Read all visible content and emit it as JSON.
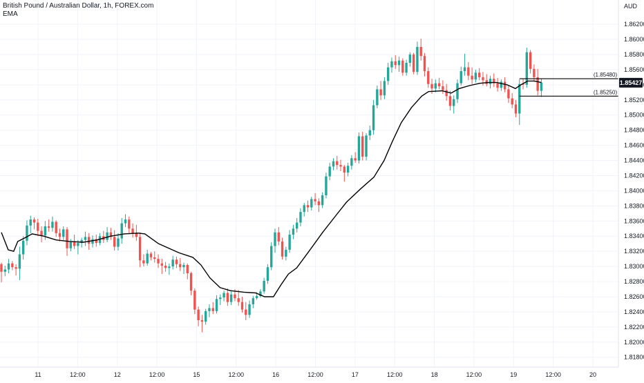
{
  "header": {
    "symbol_title": "British Pound / Australian Dollar, 1h, FOREX.com",
    "indicator": "EMA",
    "currency": "AUD"
  },
  "colors": {
    "up": "#26a69a",
    "down": "#ef5350",
    "ema": "#000000",
    "grid": "#f0f3fa",
    "axis_text": "#131722",
    "last_price_bg": "#131722"
  },
  "chart_data": {
    "type": "candlestick",
    "title": "British Pound / Australian Dollar, 1h, FOREX.com",
    "indicator": "EMA",
    "y_unit": "AUD",
    "ylim": [
      1.8167,
      1.8652
    ],
    "y_ticks": [
      "1.86200",
      "1.86000",
      "1.85800",
      "1.85600",
      "1.85400",
      "1.85200",
      "1.85000",
      "1.84800",
      "1.84600",
      "1.84400",
      "1.84200",
      "1.84000",
      "1.83800",
      "1.83600",
      "1.83400",
      "1.83200",
      "1.83000",
      "1.82800",
      "1.82600",
      "1.82400",
      "1.82200",
      "1.82000",
      "1.81800"
    ],
    "x_ticks": [
      "11",
      "12:00",
      "12",
      "12:00",
      "15",
      "12:00",
      "16",
      "12:00",
      "17",
      "12:00",
      "18",
      "12:00",
      "19",
      "12:00",
      "20"
    ],
    "last_price": "1.85427",
    "levels": [
      {
        "label": "(1.85480)",
        "value": 1.8548
      },
      {
        "label": "(1.85250)",
        "value": 1.8525
      }
    ],
    "grid": true,
    "ema_anchors": [
      [
        0,
        1.8345
      ],
      [
        10,
        1.8322
      ],
      [
        18,
        1.832
      ],
      [
        24,
        1.8333
      ],
      [
        35,
        1.8338
      ],
      [
        45,
        1.8343
      ],
      [
        62,
        1.834
      ],
      [
        80,
        1.8335
      ],
      [
        100,
        1.8333
      ],
      [
        120,
        1.8332
      ],
      [
        140,
        1.8335
      ],
      [
        160,
        1.834
      ],
      [
        180,
        1.8343
      ],
      [
        200,
        1.8344
      ],
      [
        210,
        1.8343
      ],
      [
        230,
        1.833
      ],
      [
        260,
        1.8318
      ],
      [
        280,
        1.8312
      ],
      [
        292,
        1.8302
      ],
      [
        305,
        1.8285
      ],
      [
        320,
        1.8272
      ],
      [
        335,
        1.8268
      ],
      [
        355,
        1.8266
      ],
      [
        372,
        1.8265
      ],
      [
        385,
        1.826
      ],
      [
        398,
        1.826
      ],
      [
        410,
        1.8277
      ],
      [
        420,
        1.829
      ],
      [
        432,
        1.8298
      ],
      [
        450,
        1.832
      ],
      [
        470,
        1.8345
      ],
      [
        490,
        1.8368
      ],
      [
        505,
        1.8385
      ],
      [
        525,
        1.8402
      ],
      [
        545,
        1.8418
      ],
      [
        560,
        1.844
      ],
      [
        572,
        1.8465
      ],
      [
        585,
        1.849
      ],
      [
        600,
        1.851
      ],
      [
        615,
        1.8525
      ],
      [
        625,
        1.8531
      ],
      [
        645,
        1.8532
      ],
      [
        658,
        1.8529
      ],
      [
        670,
        1.8535
      ],
      [
        685,
        1.8539
      ],
      [
        700,
        1.8542
      ],
      [
        712,
        1.8543
      ],
      [
        725,
        1.8543
      ],
      [
        740,
        1.854
      ],
      [
        752,
        1.8535
      ],
      [
        760,
        1.854
      ],
      [
        770,
        1.8545
      ],
      [
        780,
        1.8545
      ],
      [
        790,
        1.8543
      ]
    ],
    "candles": [
      [
        1.8303,
        1.8305,
        1.8279,
        1.8293
      ],
      [
        1.8293,
        1.8301,
        1.8287,
        1.8296
      ],
      [
        1.8296,
        1.831,
        1.8291,
        1.8304
      ],
      [
        1.8304,
        1.8307,
        1.8295,
        1.8299
      ],
      [
        1.8299,
        1.8303,
        1.8288,
        1.8297
      ],
      [
        1.8297,
        1.8326,
        1.8282,
        1.8316
      ],
      [
        1.8316,
        1.834,
        1.8309,
        1.8334
      ],
      [
        1.8334,
        1.8361,
        1.8328,
        1.8354
      ],
      [
        1.8354,
        1.8367,
        1.8344,
        1.8362
      ],
      [
        1.8362,
        1.8365,
        1.8349,
        1.8358
      ],
      [
        1.8358,
        1.8363,
        1.834,
        1.8347
      ],
      [
        1.8347,
        1.8353,
        1.8332,
        1.8341
      ],
      [
        1.8341,
        1.836,
        1.8335,
        1.8353
      ],
      [
        1.8353,
        1.8362,
        1.8346,
        1.8351
      ],
      [
        1.8351,
        1.8366,
        1.8346,
        1.8359
      ],
      [
        1.8359,
        1.8361,
        1.8339,
        1.8344
      ],
      [
        1.8344,
        1.835,
        1.8333,
        1.8339
      ],
      [
        1.8339,
        1.8353,
        1.8335,
        1.8349
      ],
      [
        1.8349,
        1.8352,
        1.8314,
        1.8324
      ],
      [
        1.8324,
        1.8336,
        1.832,
        1.8332
      ],
      [
        1.8332,
        1.8342,
        1.8323,
        1.8327
      ],
      [
        1.8327,
        1.8335,
        1.8316,
        1.8331
      ],
      [
        1.8331,
        1.8338,
        1.8325,
        1.8335
      ],
      [
        1.8335,
        1.8346,
        1.8327,
        1.8339
      ],
      [
        1.8339,
        1.8344,
        1.8322,
        1.833
      ],
      [
        1.833,
        1.8341,
        1.8325,
        1.8336
      ],
      [
        1.8336,
        1.8342,
        1.8326,
        1.8331
      ],
      [
        1.8331,
        1.8344,
        1.8328,
        1.834
      ],
      [
        1.834,
        1.8347,
        1.8331,
        1.8335
      ],
      [
        1.8335,
        1.8352,
        1.8332,
        1.8345
      ],
      [
        1.8345,
        1.8351,
        1.8335,
        1.8339
      ],
      [
        1.8339,
        1.8348,
        1.8321,
        1.8326
      ],
      [
        1.8326,
        1.8344,
        1.8321,
        1.8337
      ],
      [
        1.8337,
        1.8364,
        1.833,
        1.8357
      ],
      [
        1.8357,
        1.8369,
        1.8352,
        1.8362
      ],
      [
        1.8362,
        1.8366,
        1.8344,
        1.835
      ],
      [
        1.835,
        1.8357,
        1.8338,
        1.8344
      ],
      [
        1.8344,
        1.8355,
        1.8334,
        1.8339
      ],
      [
        1.8339,
        1.8345,
        1.8299,
        1.8308
      ],
      [
        1.8308,
        1.8316,
        1.83,
        1.8304
      ],
      [
        1.8304,
        1.8322,
        1.8301,
        1.8317
      ],
      [
        1.8317,
        1.8319,
        1.8308,
        1.8312
      ],
      [
        1.8312,
        1.832,
        1.8305,
        1.831
      ],
      [
        1.831,
        1.8316,
        1.8298,
        1.8304
      ],
      [
        1.8304,
        1.831,
        1.829,
        1.8301
      ],
      [
        1.8301,
        1.8306,
        1.8293,
        1.8298
      ],
      [
        1.8298,
        1.8304,
        1.8289,
        1.83
      ],
      [
        1.83,
        1.8314,
        1.8296,
        1.8309
      ],
      [
        1.8309,
        1.8313,
        1.8298,
        1.8303
      ],
      [
        1.8303,
        1.8311,
        1.8294,
        1.8299
      ],
      [
        1.8299,
        1.8305,
        1.829,
        1.8302
      ],
      [
        1.8302,
        1.8304,
        1.8283,
        1.8291
      ],
      [
        1.8291,
        1.8293,
        1.8262,
        1.8268
      ],
      [
        1.8268,
        1.8271,
        1.8237,
        1.8243
      ],
      [
        1.8243,
        1.8247,
        1.8221,
        1.8229
      ],
      [
        1.8229,
        1.8236,
        1.8213,
        1.8227
      ],
      [
        1.8227,
        1.8244,
        1.8223,
        1.8241
      ],
      [
        1.8241,
        1.825,
        1.8233,
        1.8245
      ],
      [
        1.8245,
        1.8253,
        1.8237,
        1.8241
      ],
      [
        1.8241,
        1.8262,
        1.8238,
        1.8257
      ],
      [
        1.8257,
        1.8263,
        1.8249,
        1.8259
      ],
      [
        1.8259,
        1.8268,
        1.8254,
        1.8265
      ],
      [
        1.8265,
        1.8271,
        1.8248,
        1.8253
      ],
      [
        1.8253,
        1.8267,
        1.8249,
        1.8263
      ],
      [
        1.8263,
        1.827,
        1.8254,
        1.8258
      ],
      [
        1.8258,
        1.8269,
        1.8248,
        1.8253
      ],
      [
        1.8253,
        1.826,
        1.8239,
        1.8243
      ],
      [
        1.8243,
        1.8253,
        1.8229,
        1.8236
      ],
      [
        1.8236,
        1.8255,
        1.8232,
        1.825
      ],
      [
        1.825,
        1.8261,
        1.8245,
        1.8258
      ],
      [
        1.8258,
        1.8266,
        1.8256,
        1.8261
      ],
      [
        1.8261,
        1.827,
        1.8259,
        1.8267
      ],
      [
        1.8267,
        1.8285,
        1.8264,
        1.8281
      ],
      [
        1.8281,
        1.8303,
        1.8277,
        1.8299
      ],
      [
        1.8299,
        1.8332,
        1.8295,
        1.8327
      ],
      [
        1.8327,
        1.835,
        1.8318,
        1.8345
      ],
      [
        1.8345,
        1.8352,
        1.8328,
        1.8333
      ],
      [
        1.8333,
        1.8338,
        1.8309,
        1.8313
      ],
      [
        1.8313,
        1.8326,
        1.8308,
        1.8322
      ],
      [
        1.8322,
        1.8348,
        1.8318,
        1.8342
      ],
      [
        1.8342,
        1.8355,
        1.8336,
        1.835
      ],
      [
        1.835,
        1.8364,
        1.8345,
        1.8358
      ],
      [
        1.8358,
        1.8377,
        1.8353,
        1.8372
      ],
      [
        1.8372,
        1.8384,
        1.8366,
        1.8381
      ],
      [
        1.8381,
        1.8387,
        1.8372,
        1.8378
      ],
      [
        1.8378,
        1.8392,
        1.8374,
        1.8389
      ],
      [
        1.8389,
        1.8397,
        1.8381,
        1.8386
      ],
      [
        1.8386,
        1.839,
        1.8372,
        1.8381
      ],
      [
        1.8381,
        1.8398,
        1.8377,
        1.8394
      ],
      [
        1.8394,
        1.8424,
        1.839,
        1.8419
      ],
      [
        1.8419,
        1.8437,
        1.8414,
        1.8432
      ],
      [
        1.8432,
        1.8443,
        1.8427,
        1.8439
      ],
      [
        1.8439,
        1.8446,
        1.8428,
        1.8434
      ],
      [
        1.8434,
        1.8441,
        1.8426,
        1.8432
      ],
      [
        1.8432,
        1.8434,
        1.8412,
        1.8424
      ],
      [
        1.8424,
        1.8437,
        1.8419,
        1.8433
      ],
      [
        1.8433,
        1.8447,
        1.8428,
        1.8443
      ],
      [
        1.8443,
        1.8451,
        1.8437,
        1.844
      ],
      [
        1.844,
        1.8477,
        1.8436,
        1.8472
      ],
      [
        1.8472,
        1.8478,
        1.844,
        1.8445
      ],
      [
        1.8445,
        1.8476,
        1.844,
        1.8473
      ],
      [
        1.8473,
        1.8486,
        1.8467,
        1.848
      ],
      [
        1.848,
        1.852,
        1.8474,
        1.8513
      ],
      [
        1.8513,
        1.8539,
        1.8509,
        1.8534
      ],
      [
        1.8534,
        1.8545,
        1.852,
        1.8526
      ],
      [
        1.8526,
        1.855,
        1.8521,
        1.8545
      ],
      [
        1.8545,
        1.8569,
        1.854,
        1.8563
      ],
      [
        1.8563,
        1.8576,
        1.8556,
        1.8571
      ],
      [
        1.8571,
        1.8579,
        1.8561,
        1.8566
      ],
      [
        1.8566,
        1.8577,
        1.8557,
        1.8572
      ],
      [
        1.8572,
        1.8575,
        1.8552,
        1.8556
      ],
      [
        1.8556,
        1.8573,
        1.8552,
        1.8569
      ],
      [
        1.8569,
        1.8583,
        1.8564,
        1.858
      ],
      [
        1.858,
        1.8582,
        1.8554,
        1.8557
      ],
      [
        1.8557,
        1.8597,
        1.8553,
        1.859
      ],
      [
        1.859,
        1.8601,
        1.8572,
        1.8578
      ],
      [
        1.8578,
        1.8582,
        1.8551,
        1.8558
      ],
      [
        1.8558,
        1.8563,
        1.8536,
        1.8541
      ],
      [
        1.8541,
        1.8548,
        1.8528,
        1.8535
      ],
      [
        1.8535,
        1.8547,
        1.853,
        1.8542
      ],
      [
        1.8542,
        1.8549,
        1.8534,
        1.8538
      ],
      [
        1.8538,
        1.8546,
        1.8528,
        1.8533
      ],
      [
        1.8533,
        1.8541,
        1.8519,
        1.8525
      ],
      [
        1.8525,
        1.8532,
        1.8506,
        1.8512
      ],
      [
        1.8512,
        1.8526,
        1.8502,
        1.8521
      ],
      [
        1.8521,
        1.8547,
        1.8516,
        1.8542
      ],
      [
        1.8542,
        1.8564,
        1.8539,
        1.8558
      ],
      [
        1.8558,
        1.8581,
        1.8552,
        1.8563
      ],
      [
        1.8563,
        1.857,
        1.8546,
        1.8552
      ],
      [
        1.8552,
        1.8563,
        1.8541,
        1.8547
      ],
      [
        1.8547,
        1.856,
        1.8543,
        1.8556
      ],
      [
        1.8556,
        1.8562,
        1.8546,
        1.855
      ],
      [
        1.855,
        1.8557,
        1.8539,
        1.8546
      ],
      [
        1.8546,
        1.8554,
        1.8538,
        1.8541
      ],
      [
        1.8541,
        1.8552,
        1.8535,
        1.8548
      ],
      [
        1.8548,
        1.8555,
        1.8537,
        1.8542
      ],
      [
        1.8542,
        1.8549,
        1.8531,
        1.8536
      ],
      [
        1.8536,
        1.8547,
        1.8532,
        1.8544
      ],
      [
        1.8544,
        1.855,
        1.853,
        1.8534
      ],
      [
        1.8534,
        1.8539,
        1.8516,
        1.8522
      ],
      [
        1.8522,
        1.8529,
        1.8509,
        1.8514
      ],
      [
        1.8514,
        1.852,
        1.8497,
        1.8502
      ],
      [
        1.8502,
        1.8547,
        1.8487,
        1.8541
      ],
      [
        1.8541,
        1.8548,
        1.8534,
        1.854
      ],
      [
        1.854,
        1.8589,
        1.8536,
        1.8583
      ],
      [
        1.8583,
        1.8586,
        1.8555,
        1.8561
      ],
      [
        1.8561,
        1.8567,
        1.8544,
        1.855
      ],
      [
        1.855,
        1.8561,
        1.8526,
        1.8532
      ],
      [
        1.8532,
        1.8548,
        1.8524,
        1.8543
      ]
    ]
  }
}
